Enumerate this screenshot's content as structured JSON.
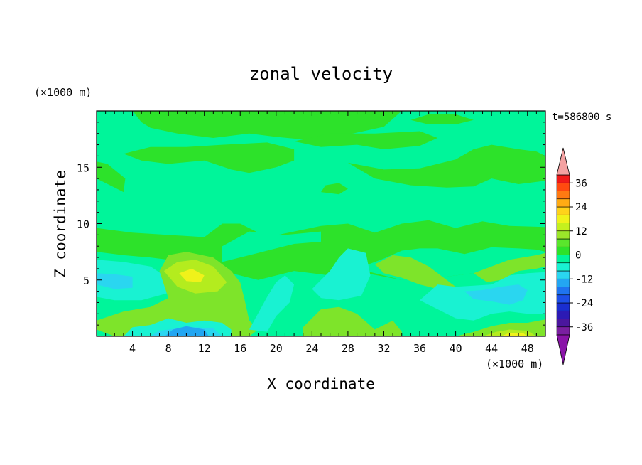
{
  "chart_data": {
    "type": "heatmap",
    "title": "zonal velocity",
    "xlabel": "X coordinate",
    "ylabel": "Z coordinate",
    "x_unit": "(×1000 m)",
    "y_unit": "(×1000 m)",
    "time_label": "t=586800 s",
    "xlim": [
      0,
      50
    ],
    "ylim": [
      0,
      20
    ],
    "x_ticks": [
      4,
      8,
      12,
      16,
      20,
      24,
      28,
      32,
      36,
      40,
      44,
      48
    ],
    "y_ticks": [
      5,
      10,
      15
    ],
    "colorbar": {
      "levels": [
        -40,
        -36,
        -32,
        -28,
        -24,
        -20,
        -16,
        -12,
        -8,
        -4,
        0,
        4,
        8,
        12,
        16,
        20,
        24,
        28,
        32,
        36,
        40
      ],
      "tick_labels": [
        "36",
        "24",
        "12",
        "0",
        "-12",
        "-24",
        "-36"
      ],
      "tick_values": [
        36,
        24,
        12,
        0,
        -12,
        -24,
        -36
      ],
      "colors": [
        "#7a1fa0",
        "#4b169e",
        "#2c1ab4",
        "#1a2ed0",
        "#1d4fe8",
        "#1f74f0",
        "#23a6f2",
        "#2ad6f0",
        "#19f2d2",
        "#00f59a",
        "#2de22a",
        "#5ae62c",
        "#9be62a",
        "#c4f01e",
        "#f0f21a",
        "#ffd21a",
        "#ffab14",
        "#ff7a12",
        "#ff4a10",
        "#f01a1a"
      ],
      "over_color": "#f4a2a2",
      "under_color": "#8a14a8"
    },
    "field_description_values": {
      "background_band": [
        -8,
        4
      ],
      "upper_green_patches": [
        0,
        4
      ],
      "left_yellow_max_near": [
        10,
        5
      ],
      "bottom_blue_min_near": [
        10,
        0.5
      ],
      "right_yellow_near": [
        46,
        0.5
      ]
    }
  }
}
